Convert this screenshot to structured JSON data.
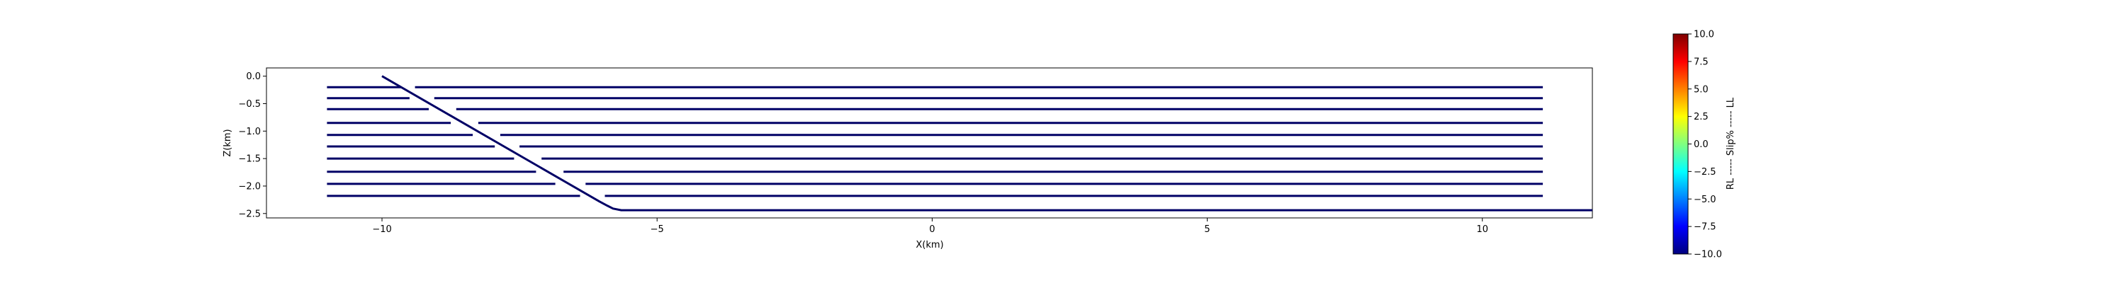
{
  "chart_data": {
    "type": "line",
    "title": "",
    "xlabel": "X(km)",
    "ylabel": "Z(km)",
    "xlim": [
      -12.1,
      12.0
    ],
    "ylim": [
      -2.58,
      0.15
    ],
    "x_ticks": [
      -10,
      -5,
      0,
      5,
      10
    ],
    "x_tick_labels": [
      "−10",
      "−5",
      "0",
      "5",
      "10"
    ],
    "y_ticks": [
      0.0,
      -0.5,
      -1.0,
      -1.5,
      -2.0,
      -2.5
    ],
    "y_tick_labels": [
      "0.0",
      "−0.5",
      "−1.0",
      "−1.5",
      "−2.0",
      "−2.5"
    ],
    "grid": false,
    "line_color": "#000066",
    "fault": {
      "x": [
        -10.0,
        -6.05,
        -5.9,
        -5.8,
        -5.65,
        12.0
      ],
      "z": [
        0.0,
        -2.28,
        -2.36,
        -2.41,
        -2.44,
        -2.44
      ]
    },
    "segments": [
      {
        "z": -0.2,
        "left": [
          -11.0,
          -9.65
        ],
        "right": [
          -9.4,
          11.1
        ]
      },
      {
        "z": -0.4,
        "left": [
          -11.0,
          -9.5
        ],
        "right": [
          -9.05,
          11.1
        ]
      },
      {
        "z": -0.6,
        "left": [
          -11.0,
          -9.15
        ],
        "right": [
          -8.65,
          11.1
        ]
      },
      {
        "z": -0.85,
        "left": [
          -11.0,
          -8.75
        ],
        "right": [
          -8.25,
          11.1
        ]
      },
      {
        "z": -1.07,
        "left": [
          -11.0,
          -8.35
        ],
        "right": [
          -7.85,
          11.1
        ]
      },
      {
        "z": -1.28,
        "left": [
          -11.0,
          -7.95
        ],
        "right": [
          -7.5,
          11.1
        ]
      },
      {
        "z": -1.5,
        "left": [
          -11.0,
          -7.6
        ],
        "right": [
          -7.1,
          11.1
        ]
      },
      {
        "z": -1.74,
        "left": [
          -11.0,
          -7.2
        ],
        "right": [
          -6.7,
          11.1
        ]
      },
      {
        "z": -1.96,
        "left": [
          -11.0,
          -6.85
        ],
        "right": [
          -6.3,
          11.1
        ]
      },
      {
        "z": -2.18,
        "left": [
          -11.0,
          -6.4
        ],
        "right": [
          -5.95,
          11.1
        ]
      }
    ],
    "colorbar": {
      "label": "RL ----- Slip% ----- LL",
      "min": -10.0,
      "max": 10.0,
      "ticks": [
        10.0,
        7.5,
        5.0,
        2.5,
        0.0,
        -2.5,
        -5.0,
        -7.5,
        -10.0
      ],
      "tick_labels": [
        "10.0",
        "7.5",
        "5.0",
        "2.5",
        "0.0",
        "−2.5",
        "−5.0",
        "−7.5",
        "−10.0"
      ],
      "colormap": "jet",
      "colors": [
        "#7f0000",
        "#ff0000",
        "#ff8000",
        "#ffff00",
        "#80ff80",
        "#00ffff",
        "#0080ff",
        "#0000ff",
        "#00007f"
      ]
    }
  }
}
